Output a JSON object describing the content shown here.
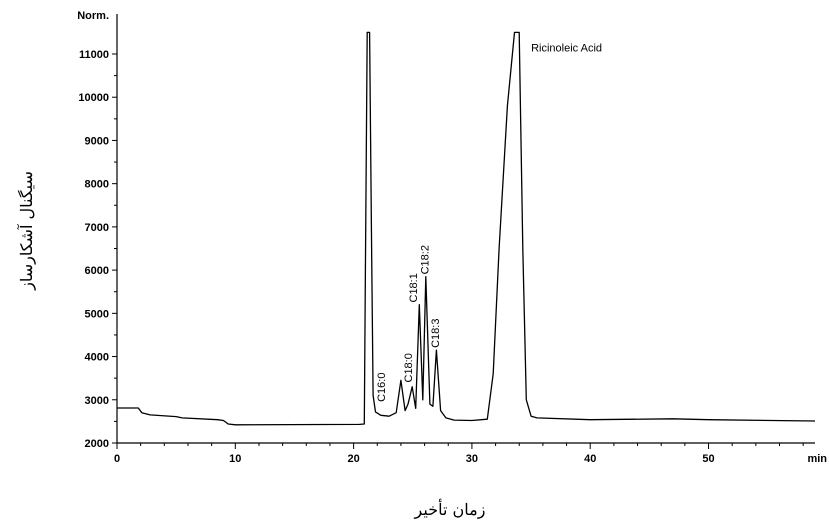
{
  "chart_data": {
    "type": "line",
    "ylabel": "سیگنال آشکارساز",
    "xlabel": "زمان تأخیر",
    "y_unit_label": "Norm.",
    "x_unit_label": "min",
    "xlim": [
      0,
      59
    ],
    "ylim": [
      2000,
      11000
    ],
    "x_ticks": [
      0,
      10,
      20,
      30,
      40,
      50
    ],
    "y_ticks": [
      2000,
      3000,
      4000,
      5000,
      6000,
      7000,
      8000,
      9000,
      10000,
      11000
    ],
    "grid": false,
    "series": [
      {
        "x": [
          0,
          1.8,
          2.1,
          2.8,
          5,
          5.5,
          8.5,
          9.0,
          9.4,
          10,
          20.5,
          20.9,
          21.0,
          21.15,
          21.35,
          21.5,
          21.65,
          21.85,
          22.3,
          23.0,
          23.6,
          24.0,
          24.35,
          24.6,
          24.95,
          25.25,
          25.55,
          25.85,
          26.1,
          26.45,
          26.7,
          27.0,
          27.35,
          27.8,
          28.5,
          30,
          31.3,
          31.8,
          32.3,
          33.0,
          33.6,
          34.0,
          34.3,
          34.6,
          35.0,
          35.5,
          40,
          47,
          50,
          59
        ],
        "y": [
          2810,
          2810,
          2700,
          2650,
          2610,
          2580,
          2540,
          2520,
          2440,
          2420,
          2430,
          2440,
          6000,
          11500,
          11500,
          7000,
          3100,
          2720,
          2640,
          2620,
          2700,
          3450,
          2750,
          2900,
          3300,
          2800,
          5200,
          3000,
          5850,
          2900,
          2850,
          4150,
          2750,
          2580,
          2530,
          2520,
          2550,
          3600,
          6500,
          9800,
          11500,
          11500,
          6500,
          3000,
          2620,
          2580,
          2540,
          2560,
          2540,
          2510
        ]
      }
    ],
    "annotations": [
      {
        "text": "C16:0",
        "x": 22.3,
        "y": 2950
      },
      {
        "text": "C18:0",
        "x": 24.6,
        "y": 3400
      },
      {
        "text": "C18:1",
        "x": 25.0,
        "y": 5250
      },
      {
        "text": "C18:2",
        "x": 26.0,
        "y": 5900
      },
      {
        "text": "C18:3",
        "x": 26.9,
        "y": 4200
      },
      {
        "text": "Ricinoleic Acid",
        "x": 35.0,
        "y": 11150
      }
    ]
  }
}
